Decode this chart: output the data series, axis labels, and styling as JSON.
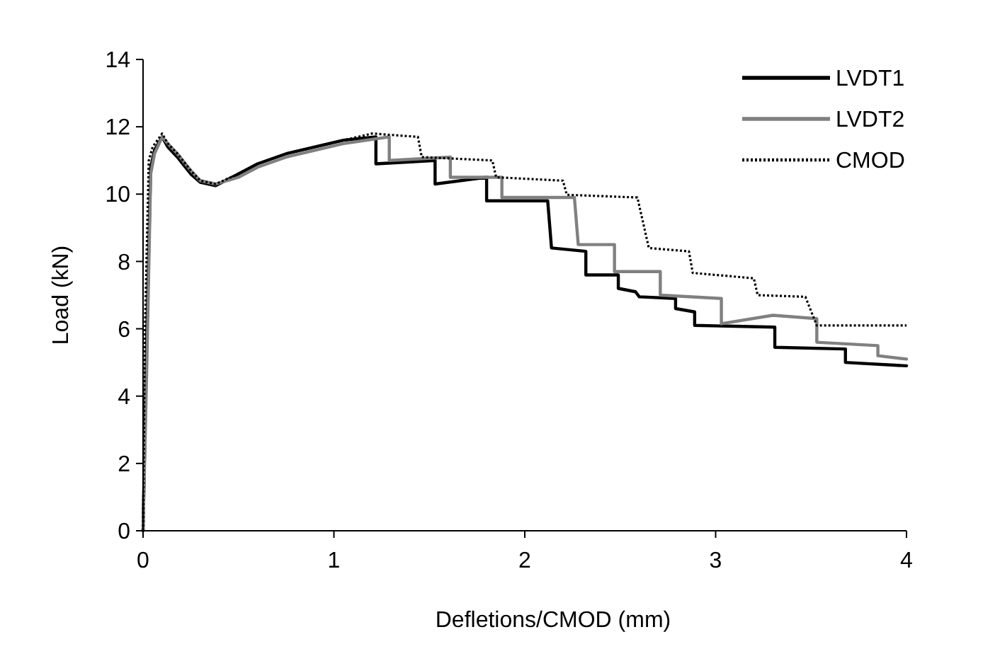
{
  "chart_data": {
    "type": "line",
    "xlabel": "Defletions/CMOD (mm)",
    "ylabel": "Load (kN)",
    "xlim": [
      0,
      4
    ],
    "ylim": [
      0,
      14
    ],
    "xticks": [
      0,
      1,
      2,
      3,
      4
    ],
    "yticks": [
      0,
      2,
      4,
      6,
      8,
      10,
      12,
      14
    ],
    "grid": false,
    "legend": "top right",
    "marker": "none",
    "series": [
      {
        "name": "LVDT1",
        "color": "#000000",
        "line_style": "solid",
        "x": [
          0,
          0.02,
          0.04,
          0.06,
          0.1,
          0.13,
          0.18,
          0.25,
          0.3,
          0.38,
          0.5,
          0.6,
          0.75,
          0.9,
          1.05,
          1.22,
          1.22,
          1.53,
          1.53,
          1.8,
          1.8,
          2.12,
          2.14,
          2.32,
          2.32,
          2.49,
          2.49,
          2.58,
          2.6,
          2.79,
          2.79,
          2.89,
          2.89,
          3.31,
          3.31,
          3.68,
          3.68,
          4
        ],
        "values": [
          0,
          6,
          10.8,
          11.3,
          11.7,
          11.4,
          11.1,
          10.6,
          10.35,
          10.25,
          10.6,
          10.9,
          11.2,
          11.4,
          11.6,
          11.7,
          10.9,
          11.0,
          10.3,
          10.5,
          9.8,
          9.8,
          8.4,
          8.3,
          7.6,
          7.6,
          7.2,
          7.1,
          6.95,
          6.9,
          6.6,
          6.5,
          6.1,
          6.05,
          5.45,
          5.4,
          5.0,
          4.9
        ]
      },
      {
        "name": "LVDT2",
        "color": "#808080",
        "line_style": "solid",
        "x": [
          0,
          0.02,
          0.04,
          0.06,
          0.1,
          0.13,
          0.18,
          0.25,
          0.3,
          0.38,
          0.5,
          0.6,
          0.75,
          0.9,
          1.05,
          1.29,
          1.29,
          1.61,
          1.61,
          1.88,
          1.88,
          2.26,
          2.28,
          2.47,
          2.47,
          2.71,
          2.71,
          3.03,
          3.03,
          3.3,
          3.53,
          3.53,
          3.85,
          3.85,
          4
        ],
        "values": [
          0,
          5,
          10.6,
          11.2,
          11.7,
          11.5,
          11.2,
          10.7,
          10.4,
          10.3,
          10.5,
          10.8,
          11.1,
          11.3,
          11.5,
          11.7,
          11.0,
          11.1,
          10.5,
          10.5,
          9.9,
          9.9,
          8.5,
          8.5,
          7.7,
          7.7,
          7.0,
          6.9,
          6.15,
          6.4,
          6.3,
          5.6,
          5.5,
          5.2,
          5.1
        ]
      },
      {
        "name": "CMOD",
        "color": "#000000",
        "line_style": "dotted",
        "x": [
          0,
          0.01,
          0.03,
          0.05,
          0.1,
          0.13,
          0.18,
          0.25,
          0.3,
          0.38,
          0.5,
          0.6,
          0.75,
          0.9,
          1.05,
          1.2,
          1.44,
          1.46,
          1.83,
          1.85,
          2.2,
          2.22,
          2.59,
          2.65,
          2.86,
          2.88,
          3.2,
          3.22,
          3.47,
          3.53,
          4
        ],
        "values": [
          0,
          6,
          11.0,
          11.4,
          11.8,
          11.5,
          11.2,
          10.7,
          10.4,
          10.3,
          10.6,
          10.9,
          11.2,
          11.4,
          11.6,
          11.8,
          11.7,
          11.1,
          11.0,
          10.5,
          10.4,
          9.98,
          9.9,
          8.4,
          8.3,
          7.66,
          7.5,
          7.0,
          6.95,
          6.1,
          6.1
        ]
      }
    ]
  }
}
